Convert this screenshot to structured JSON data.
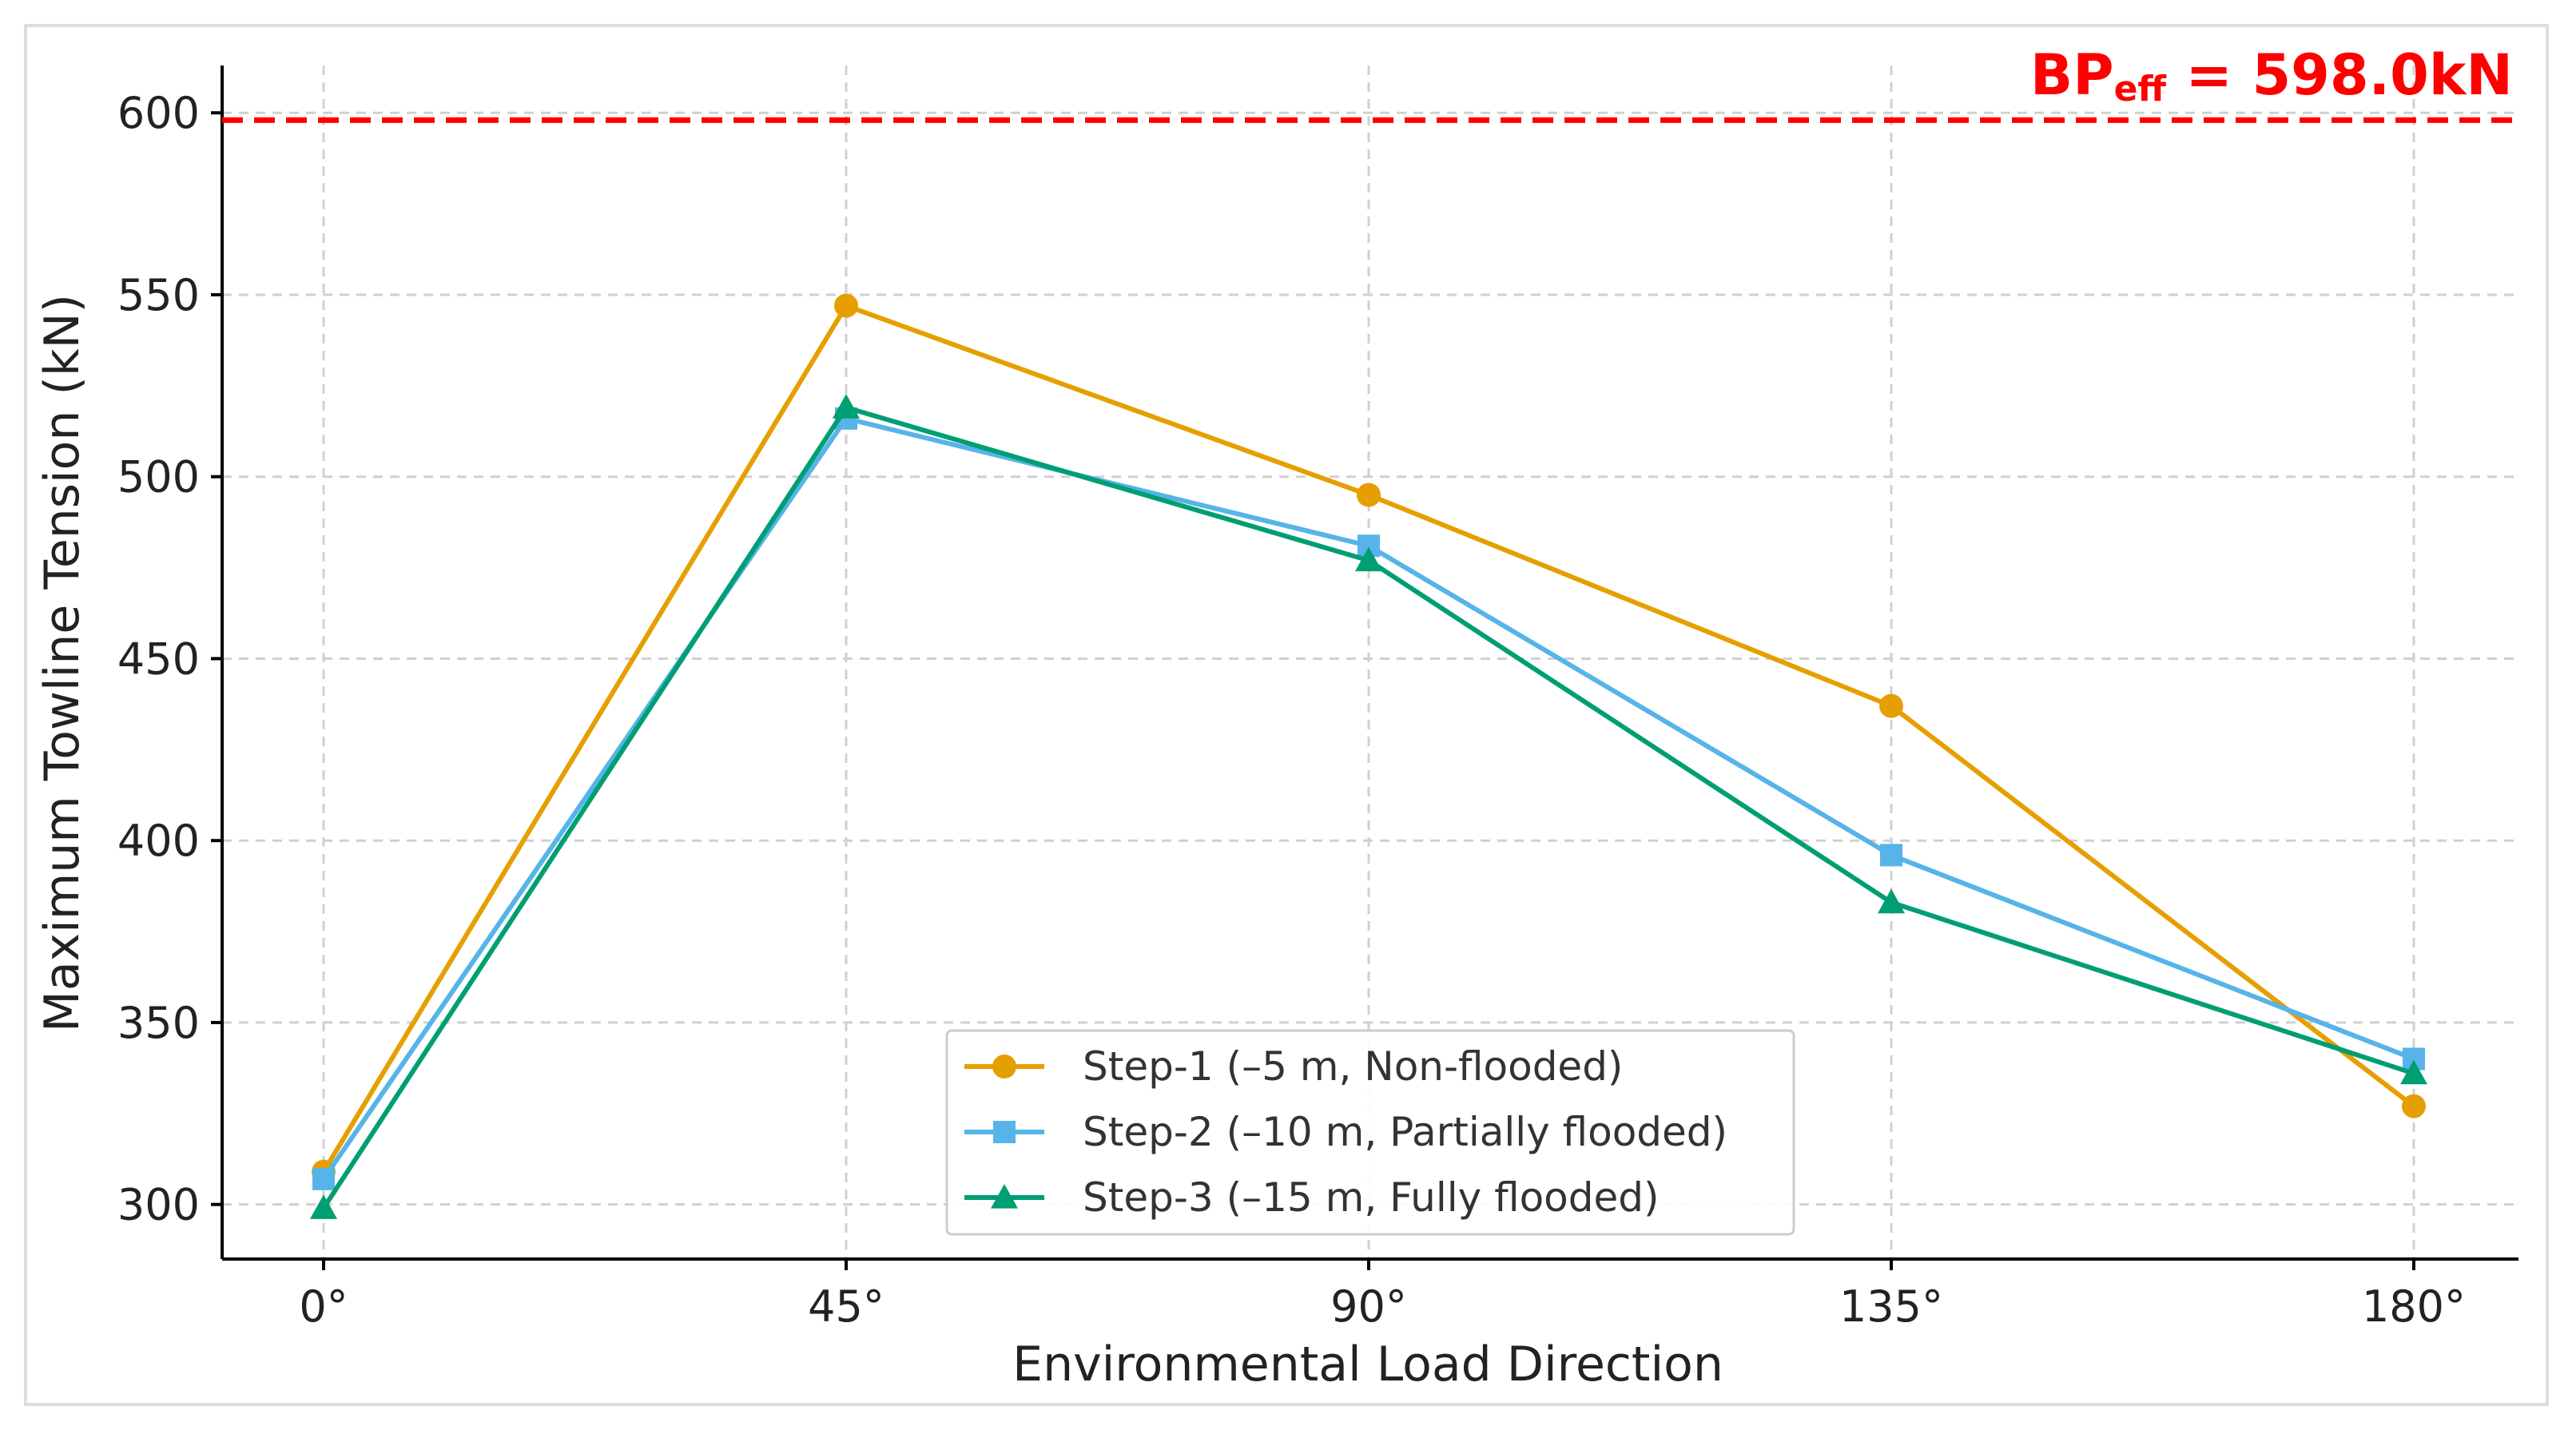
{
  "chart_data": {
    "type": "line",
    "categories": [
      "0°",
      "45°",
      "90°",
      "135°",
      "180°"
    ],
    "series": [
      {
        "name": "Step-1 (–5 m, Non-flooded)",
        "values": [
          309,
          547,
          495,
          437,
          327
        ],
        "color": "#E69F00",
        "marker": "circle"
      },
      {
        "name": "Step-2 (–10 m, Partially flooded)",
        "values": [
          307,
          516,
          481,
          396,
          340
        ],
        "color": "#56B4E9",
        "marker": "square"
      },
      {
        "name": "Step-3 (–15 m, Fully flooded)",
        "values": [
          299,
          519,
          477,
          383,
          336
        ],
        "color": "#009E73",
        "marker": "triangle"
      }
    ],
    "xlabel": "Environmental Load Direction",
    "ylabel": "Maximum Towline Tension (kN)",
    "ylim": [
      285,
      613
    ],
    "yticks": [
      300,
      350,
      400,
      450,
      500,
      550,
      600
    ],
    "grid": true,
    "legend_position": "bottom-center",
    "reference_line": {
      "value": 598,
      "color": "#ff0000",
      "label_main": "BP",
      "label_sub": "eff",
      "label_value": " = 598.0kN"
    }
  }
}
